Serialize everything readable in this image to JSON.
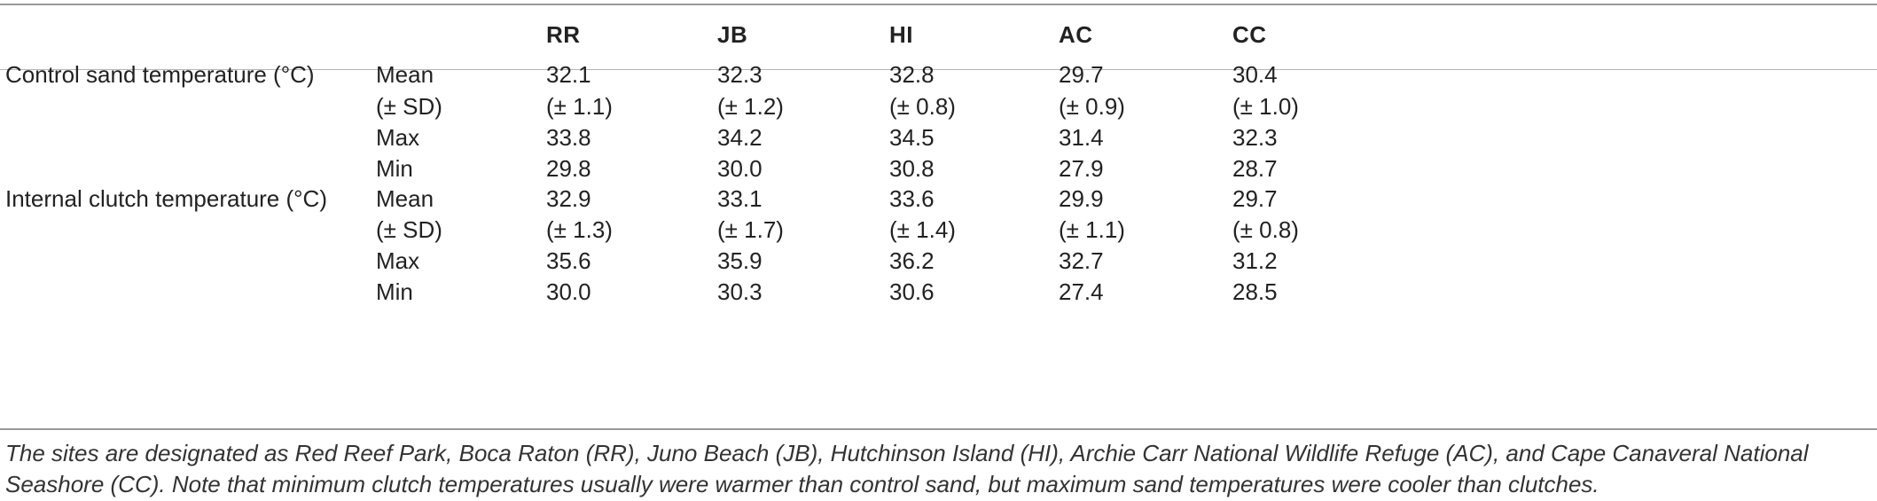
{
  "columns": [
    "RR",
    "JB",
    "HI",
    "AC",
    "CC"
  ],
  "groups": [
    {
      "label": "Control sand temperature (°C)",
      "rows": [
        {
          "stat": "Mean",
          "values": [
            "32.1",
            "32.3",
            "32.8",
            "29.7",
            "30.4"
          ]
        },
        {
          "stat": "(± SD)",
          "values": [
            "(± 1.1)",
            "(± 1.2)",
            "(± 0.8)",
            "(± 0.9)",
            "(± 1.0)"
          ]
        },
        {
          "stat": "Max",
          "values": [
            "33.8",
            "34.2",
            "34.5",
            "31.4",
            "32.3"
          ]
        },
        {
          "stat": "Min",
          "values": [
            "29.8",
            "30.0",
            "30.8",
            "27.9",
            "28.7"
          ]
        }
      ]
    },
    {
      "label": "Internal clutch temperature (°C)",
      "rows": [
        {
          "stat": "Mean",
          "values": [
            "32.9",
            "33.1",
            "33.6",
            "29.9",
            "29.7"
          ]
        },
        {
          "stat": "(± SD)",
          "values": [
            "(± 1.3)",
            "(± 1.7)",
            "(± 1.4)",
            "(± 1.1)",
            "(± 0.8)"
          ]
        },
        {
          "stat": "Max",
          "values": [
            "35.6",
            "35.9",
            "36.2",
            "32.7",
            "31.2"
          ]
        },
        {
          "stat": "Min",
          "values": [
            "30.0",
            "30.3",
            "30.6",
            "27.4",
            "28.5"
          ]
        }
      ]
    }
  ],
  "footnote": "The sites are designated as Red Reef Park, Boca Raton (RR), Juno Beach (JB), Hutchinson Island (HI), Archie Carr National Wildlife Refuge (AC), and Cape Canaveral National Seashore (CC). Note that minimum clutch temperatures usually were warmer than control sand, but maximum sand temperatures were cooler than clutches."
}
